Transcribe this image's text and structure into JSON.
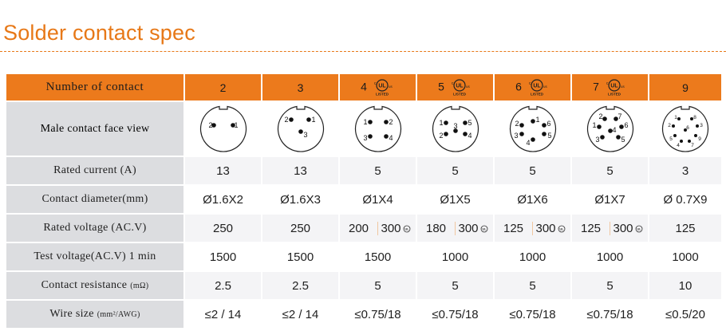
{
  "title": "Solder contact spec",
  "header": {
    "label": "Number of contact",
    "columns": [
      "2",
      "3",
      "4",
      "5",
      "6",
      "7",
      "9"
    ],
    "ul_listed_columns": [
      "4",
      "5",
      "6",
      "7"
    ],
    "ul_text": "LISTED",
    "ul_c": "c",
    "ul_us": "us",
    "ul_logo": "UL"
  },
  "face_row": {
    "label": "Male  contact  face  view",
    "pin_labels": {
      "2": [
        "2",
        "1"
      ],
      "3": [
        "2",
        "1",
        "3"
      ],
      "4": [
        "1",
        "2",
        "3",
        "4"
      ],
      "5": [
        "1",
        "5",
        "2",
        "3",
        "4"
      ],
      "6": [
        "2",
        "1",
        "6",
        "3",
        "5",
        "4"
      ],
      "7": [
        "1",
        "2",
        "7",
        "6",
        "5",
        "3",
        "4"
      ],
      "9": [
        "2",
        "1",
        "8",
        "3",
        "9",
        "7",
        "4",
        "5",
        "6"
      ]
    }
  },
  "rows": [
    {
      "label": "Rated current (A)",
      "values": [
        "13",
        "13",
        "5",
        "5",
        "5",
        "5",
        "3"
      ]
    },
    {
      "label": "Contact diameter(mm)",
      "values": [
        "Ø1.6X2",
        "Ø1.6X3",
        "Ø1X4",
        "Ø1X5",
        "Ø1X6",
        "Ø1X7",
        "Ø 0.7X9"
      ]
    },
    {
      "label": "Rated voltage (AC.V)",
      "values": [
        "250",
        "250",
        "200|300",
        "180|300",
        "125|300",
        "125|300",
        "125"
      ]
    },
    {
      "label": "Test voltage(AC.V) 1 min",
      "values": [
        "1500",
        "1500",
        "1500",
        "1000",
        "1000",
        "1000",
        "1000"
      ]
    },
    {
      "label": "Contact resistance",
      "label_unit": "(mΩ)",
      "values": [
        "2.5",
        "2.5",
        "5",
        "5",
        "5",
        "5",
        "10"
      ]
    },
    {
      "label": "Wire size",
      "label_unit": "(mm²/AWG)",
      "values": [
        "≤2 / 14",
        "≤2 / 14",
        "≤0.75/18",
        "≤0.75/18",
        "≤0.75/18",
        "≤0.75/18",
        "≤0.5/20"
      ]
    }
  ],
  "colors": {
    "accent": "#e77817",
    "header_bg": "#ec7a1c",
    "label_bg": "#dcdde0",
    "stripe_bg": "#f4f4f6"
  }
}
